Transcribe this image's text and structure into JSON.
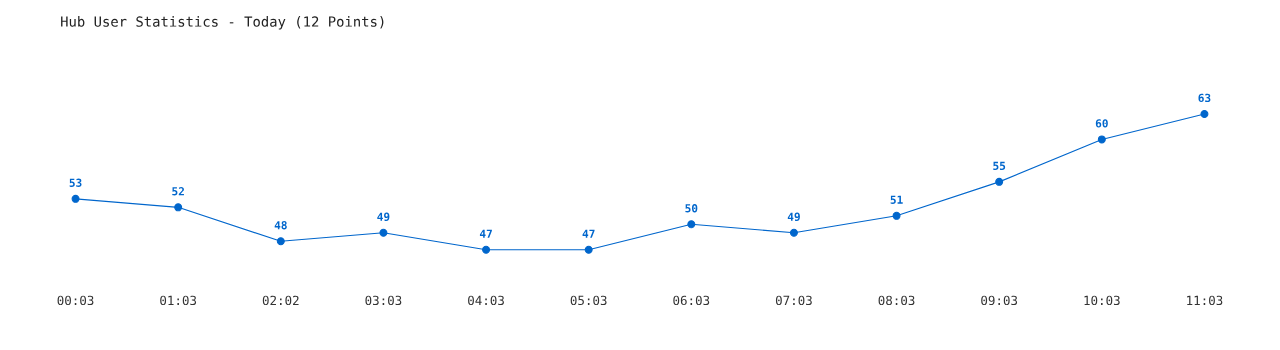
{
  "chart_data": {
    "type": "line",
    "title": "Hub User Statistics - Today (12 Points)",
    "categories": [
      "00:03",
      "01:03",
      "02:02",
      "03:03",
      "04:03",
      "05:03",
      "06:03",
      "07:03",
      "08:03",
      "09:03",
      "10:03",
      "11:03"
    ],
    "series": [
      {
        "color": "#0066cc",
        "values": [
          53,
          52,
          48,
          49,
          47,
          47,
          50,
          49,
          51,
          55,
          60,
          63
        ]
      }
    ],
    "data_labels": true,
    "marker": "circle",
    "line_style": "solid",
    "grid": false,
    "legend": false,
    "tick_labels": "x"
  }
}
